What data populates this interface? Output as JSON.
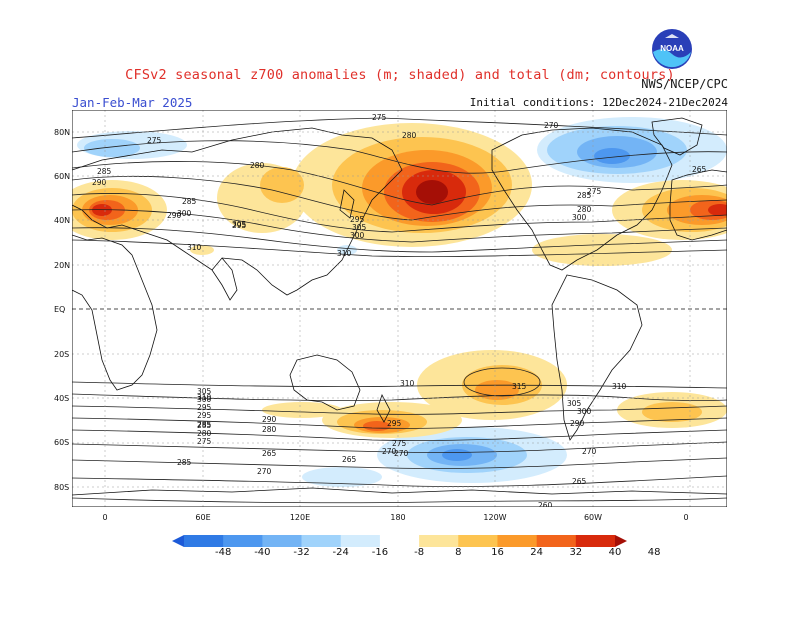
{
  "header": {
    "title": "CFSv2 seasonal z700 anomalies (m; shaded) and total (dm; contours)",
    "agency": "NWS/NCEP/CPC",
    "period": "Jan-Feb-Mar 2025",
    "initial_conditions": "Initial conditions: 12Dec2024-21Dec2024",
    "logo_text": "NOAA"
  },
  "axes": {
    "lat_labels": [
      "80N",
      "60N",
      "40N",
      "20N",
      "EQ",
      "20S",
      "40S",
      "60S",
      "80S"
    ],
    "lon_labels": [
      "0",
      "60E",
      "120E",
      "180",
      "120W",
      "60W",
      "0"
    ]
  },
  "colorbar": {
    "labels": [
      "-48",
      "-40",
      "-32",
      "-24",
      "-16",
      "-8",
      "8",
      "16",
      "24",
      "32",
      "40",
      "48"
    ],
    "colors": [
      "#1c5ad8",
      "#2f7ae5",
      "#4d97ef",
      "#73b4f5",
      "#a0d3fb",
      "#d3ecfd",
      "#ffffff",
      "#fde59a",
      "#fdc450",
      "#fb9a2a",
      "#f2641b",
      "#d82a0c",
      "#a50f06"
    ]
  },
  "contour_labels": [
    "275",
    "275",
    "280",
    "280",
    "285",
    "285",
    "290",
    "290",
    "295",
    "295",
    "300",
    "300",
    "305",
    "305",
    "310",
    "310",
    "315",
    "310",
    "310",
    "300",
    "305",
    "295",
    "290",
    "285",
    "280",
    "275",
    "270",
    "270",
    "265",
    "265",
    "265",
    "260",
    "285",
    "270",
    "295",
    "285",
    "280",
    "275",
    "270",
    "290",
    "295",
    "300",
    "305",
    "310",
    "300",
    "285",
    "280",
    "275",
    "270",
    "265"
  ]
}
